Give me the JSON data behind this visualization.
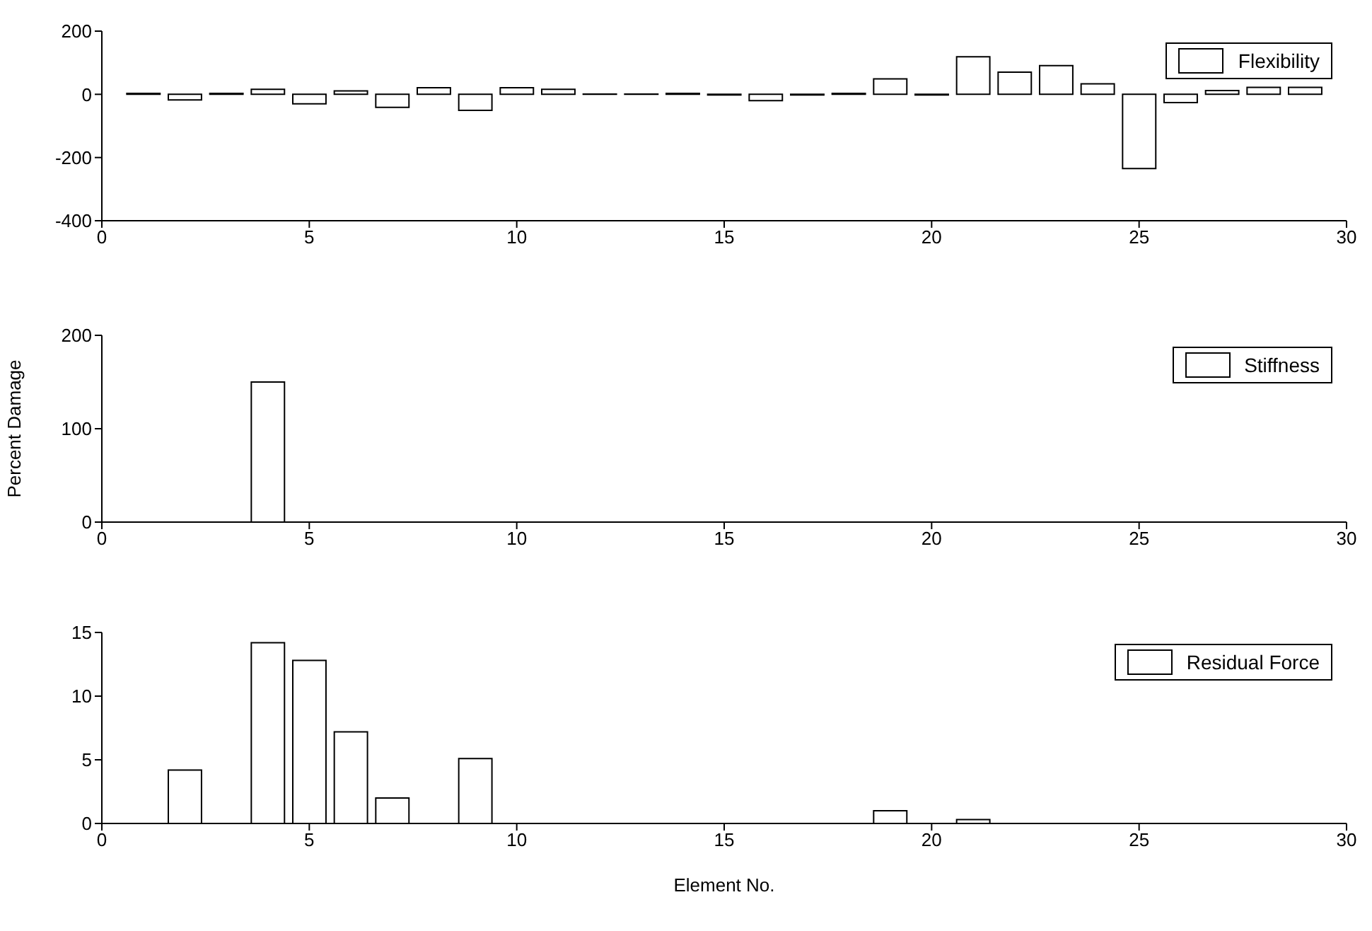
{
  "chart_data": [
    {
      "type": "bar",
      "x": [
        1,
        2,
        3,
        4,
        5,
        6,
        7,
        8,
        9,
        10,
        11,
        12,
        13,
        14,
        15,
        16,
        17,
        18,
        19,
        20,
        21,
        22,
        23,
        24,
        25,
        26,
        27,
        28,
        29
      ],
      "series": [
        {
          "name": "Flexibility",
          "color": "#ffffff",
          "values": [
            3,
            -18,
            3,
            16,
            -30,
            11,
            -41,
            21,
            -51,
            21,
            16,
            1,
            1,
            3,
            -2,
            -20,
            -2,
            3,
            49,
            -2,
            119,
            70,
            91,
            33,
            -235,
            -26,
            12,
            22,
            22
          ]
        }
      ],
      "xlim": [
        0,
        30
      ],
      "xticks": [
        0,
        5,
        10,
        15,
        20,
        25,
        30
      ],
      "ylim": [
        -400,
        200
      ],
      "yticks": [
        -400,
        -200,
        0,
        200
      ],
      "legend": "top right"
    },
    {
      "type": "bar",
      "x": [
        1,
        2,
        3,
        4,
        5,
        6,
        7,
        8,
        9,
        10,
        11,
        12,
        13,
        14,
        15,
        16,
        17,
        18,
        19,
        20,
        21,
        22,
        23,
        24,
        25,
        26,
        27,
        28,
        29
      ],
      "series": [
        {
          "name": "Stiffness",
          "color": "#ffffff",
          "values": [
            0,
            0,
            0,
            150,
            0,
            0,
            0,
            0,
            0,
            0,
            0,
            0,
            0,
            0,
            0,
            0,
            0,
            0,
            0,
            0,
            0,
            0,
            0,
            0,
            0,
            0,
            0,
            0,
            0
          ]
        }
      ],
      "ylabel": "Percent Damage",
      "xlim": [
        0,
        30
      ],
      "xticks": [
        0,
        5,
        10,
        15,
        20,
        25,
        30
      ],
      "ylim": [
        0,
        200
      ],
      "yticks": [
        0,
        100,
        200
      ],
      "legend": "top right"
    },
    {
      "type": "bar",
      "x": [
        1,
        2,
        3,
        4,
        5,
        6,
        7,
        8,
        9,
        10,
        11,
        12,
        13,
        14,
        15,
        16,
        17,
        18,
        19,
        20,
        21,
        22,
        23,
        24,
        25,
        26,
        27,
        28,
        29
      ],
      "series": [
        {
          "name": "Residual Force",
          "color": "#ffffff",
          "values": [
            0,
            4.2,
            0,
            14.2,
            12.8,
            7.2,
            2.0,
            0,
            5.1,
            0,
            0,
            0,
            0,
            0,
            0,
            0,
            0,
            0,
            1.0,
            0,
            0.3,
            0,
            0,
            0,
            0,
            0,
            0,
            0,
            0
          ]
        }
      ],
      "xlabel": "Element No.",
      "xlim": [
        0,
        30
      ],
      "xticks": [
        0,
        5,
        10,
        15,
        20,
        25,
        30
      ],
      "ylim": [
        0,
        15
      ],
      "yticks": [
        0,
        5,
        10,
        15
      ],
      "legend": "top right"
    }
  ]
}
